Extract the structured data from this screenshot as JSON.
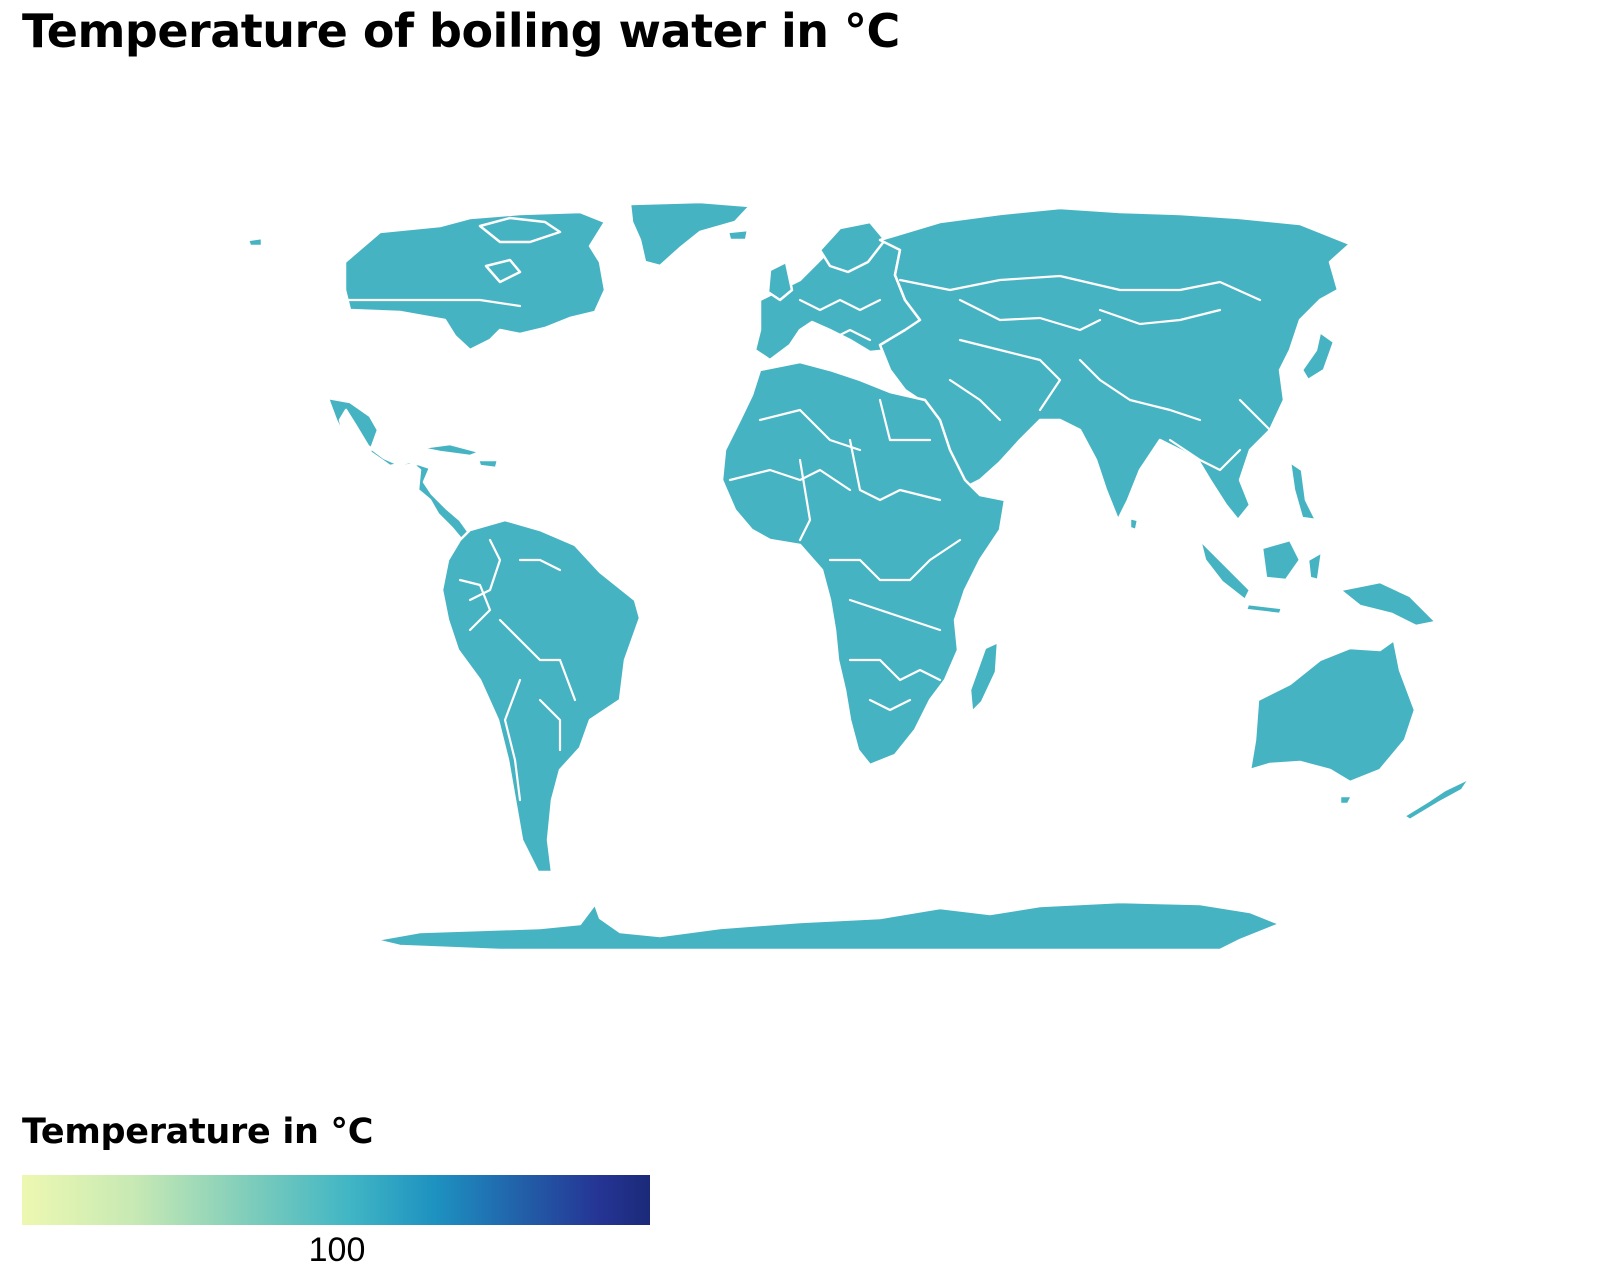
{
  "title": "Temperature of boiling water in °C",
  "legend": {
    "title": "Temperature in °C",
    "tick_label": "100",
    "tick_value": 100,
    "scale_colors": [
      "#edf8b1",
      "#c7e9b4",
      "#7fcdbb",
      "#41b6c4",
      "#1d91c0",
      "#225ea8",
      "#253494",
      "#1b2a78"
    ]
  },
  "chart_data": {
    "type": "choropleth",
    "title": "Temperature of boiling water in °C",
    "value_for_all_countries": 100,
    "unit": "°C",
    "fill_color": "#46b3c2",
    "border_color": "#ffffff",
    "legend_title": "Temperature in °C",
    "legend_ticks": [
      100
    ]
  }
}
